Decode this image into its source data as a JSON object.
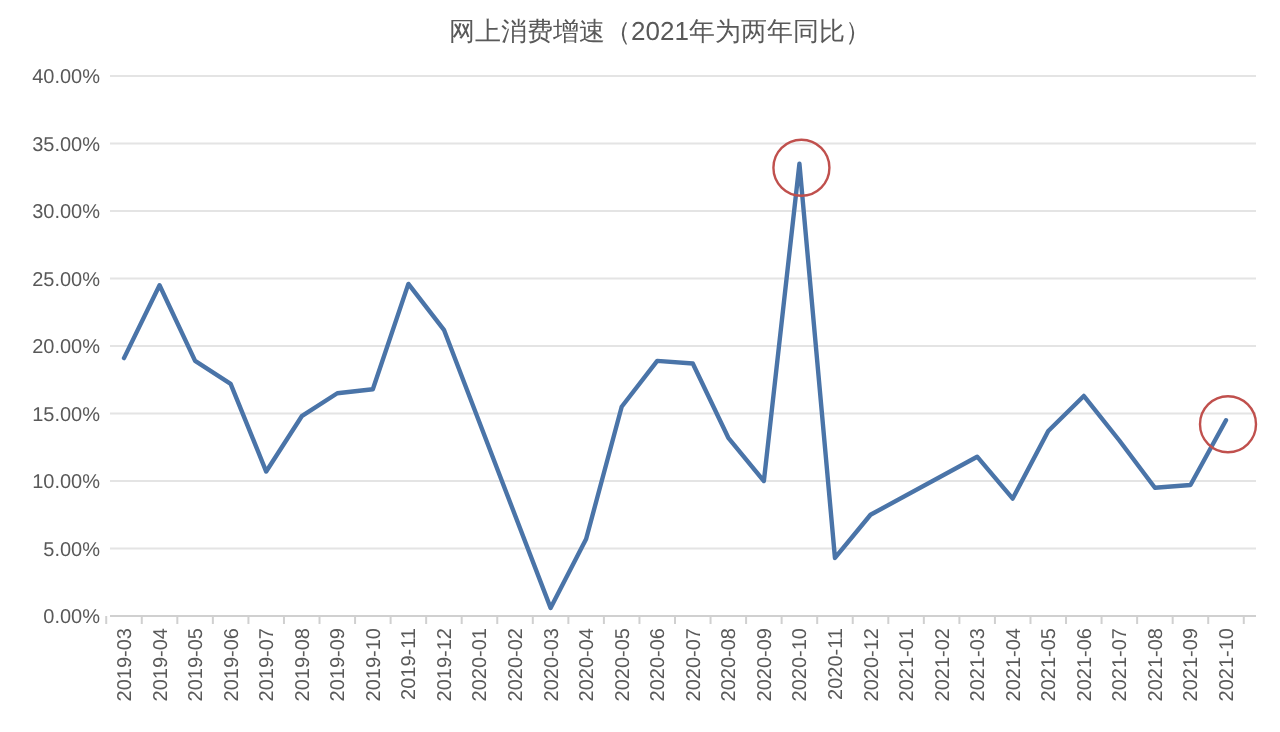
{
  "chart_data": {
    "type": "line",
    "title": "网上消费增速（2021年为两年同比）",
    "categories": [
      "2019-03",
      "2019-04",
      "2019-05",
      "2019-06",
      "2019-07",
      "2019-08",
      "2019-09",
      "2019-10",
      "2019-11",
      "2019-12",
      "2020-01",
      "2020-02",
      "2020-03",
      "2020-04",
      "2020-05",
      "2020-06",
      "2020-07",
      "2020-08",
      "2020-09",
      "2020-10",
      "2020-11",
      "2020-12",
      "2021-01",
      "2021-02",
      "2021-03",
      "2021-04",
      "2021-05",
      "2021-06",
      "2021-07",
      "2021-08",
      "2021-09",
      "2021-10"
    ],
    "series": [
      {
        "color": "#4a74a8",
        "values": [
          19.1,
          24.5,
          18.9,
          17.2,
          10.7,
          14.8,
          16.5,
          16.8,
          24.6,
          21.2,
          null,
          null,
          0.6,
          5.7,
          15.5,
          18.9,
          18.7,
          13.2,
          10.0,
          33.5,
          4.3,
          7.5,
          null,
          null,
          11.8,
          8.7,
          13.7,
          16.3,
          13.0,
          9.5,
          9.7,
          14.5
        ]
      }
    ],
    "ylim": [
      0,
      40
    ],
    "yticks": [
      {
        "value": 0,
        "label": "0.00%"
      },
      {
        "value": 5,
        "label": "5.00%"
      },
      {
        "value": 10,
        "label": "10.00%"
      },
      {
        "value": 15,
        "label": "15.00%"
      },
      {
        "value": 20,
        "label": "20.00%"
      },
      {
        "value": 25,
        "label": "25.00%"
      },
      {
        "value": 30,
        "label": "30.00%"
      },
      {
        "value": 35,
        "label": "35.00%"
      },
      {
        "value": 40,
        "label": "40.00%"
      }
    ],
    "grid": "y",
    "marker": "none",
    "line_style": "solid"
  }
}
